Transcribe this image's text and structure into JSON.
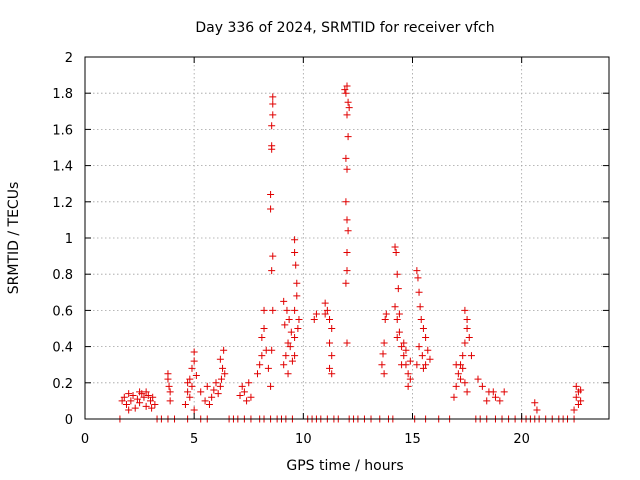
{
  "chart_data": {
    "type": "scatter",
    "title": "Day 336 of 2024, SRMTID for receiver vfch",
    "xlabel": "GPS time / hours",
    "ylabel": "SRMTID / TECUs",
    "xlim": [
      0,
      24
    ],
    "ylim": [
      0,
      2
    ],
    "xticks": [
      0,
      5,
      10,
      15,
      20
    ],
    "yticks": [
      0,
      0.2,
      0.4,
      0.6,
      0.8,
      1,
      1.2,
      1.4,
      1.6,
      1.8,
      2
    ],
    "xtick_labels": [
      "0",
      "5",
      "10",
      "15",
      "20"
    ],
    "ytick_labels": [
      "0",
      "0.2",
      "0.4",
      "0.6",
      "0.8",
      "1",
      "1.2",
      "1.4",
      "1.6",
      "1.8",
      "2"
    ],
    "grid": true,
    "marker": "+",
    "marker_color": "#e00000",
    "series": [
      {
        "name": "SRMTID",
        "points": [
          [
            1.6,
            0
          ],
          [
            3.3,
            0
          ],
          [
            3.5,
            0
          ],
          [
            3.8,
            0
          ],
          [
            4.1,
            0
          ],
          [
            4.7,
            0
          ],
          [
            5.3,
            0
          ],
          [
            5.6,
            0
          ],
          [
            6.6,
            0
          ],
          [
            6.8,
            0
          ],
          [
            7.0,
            0
          ],
          [
            7.3,
            0
          ],
          [
            7.6,
            0
          ],
          [
            8.0,
            0
          ],
          [
            8.2,
            0
          ],
          [
            8.5,
            0
          ],
          [
            8.8,
            0
          ],
          [
            9.0,
            0
          ],
          [
            9.2,
            0
          ],
          [
            9.5,
            0
          ],
          [
            10.2,
            0
          ],
          [
            10.4,
            0
          ],
          [
            10.6,
            0
          ],
          [
            10.8,
            0
          ],
          [
            11.1,
            0
          ],
          [
            11.4,
            0
          ],
          [
            11.6,
            0
          ],
          [
            12.1,
            0
          ],
          [
            12.3,
            0
          ],
          [
            12.5,
            0
          ],
          [
            12.8,
            0
          ],
          [
            13.1,
            0
          ],
          [
            13.5,
            0
          ],
          [
            13.9,
            0
          ],
          [
            14.1,
            0
          ],
          [
            15.1,
            0
          ],
          [
            15.6,
            0
          ],
          [
            16.2,
            0
          ],
          [
            16.7,
            0
          ],
          [
            17.9,
            0
          ],
          [
            18.1,
            0
          ],
          [
            18.4,
            0
          ],
          [
            18.8,
            0
          ],
          [
            19.1,
            0
          ],
          [
            19.4,
            0
          ],
          [
            19.7,
            0
          ],
          [
            20.0,
            0
          ],
          [
            20.2,
            0
          ],
          [
            20.4,
            0
          ],
          [
            20.6,
            0
          ],
          [
            20.8,
            0
          ],
          [
            21.1,
            0
          ],
          [
            21.4,
            0
          ],
          [
            21.7,
            0
          ],
          [
            21.9,
            0
          ],
          [
            22.1,
            0
          ],
          [
            22.4,
            0
          ],
          [
            1.7,
            0.1
          ],
          [
            1.8,
            0.12
          ],
          [
            1.9,
            0.08
          ],
          [
            2.0,
            0.14
          ],
          [
            2.1,
            0.1
          ],
          [
            2.2,
            0.13
          ],
          [
            2.3,
            0.06
          ],
          [
            2.4,
            0.11
          ],
          [
            2.5,
            0.09
          ],
          [
            2.6,
            0.14
          ],
          [
            2.7,
            0.12
          ],
          [
            2.8,
            0.07
          ],
          [
            2.9,
            0.13
          ],
          [
            3.0,
            0.1
          ],
          [
            3.1,
            0.12
          ],
          [
            3.2,
            0.08
          ],
          [
            2.0,
            0.05
          ],
          [
            2.5,
            0.15
          ],
          [
            2.8,
            0.15
          ],
          [
            3.05,
            0.06
          ],
          [
            3.8,
            0.22
          ],
          [
            3.85,
            0.18
          ],
          [
            3.9,
            0.15
          ],
          [
            3.8,
            0.25
          ],
          [
            3.9,
            0.1
          ],
          [
            4.6,
            0.08
          ],
          [
            4.7,
            0.15
          ],
          [
            4.8,
            0.22
          ],
          [
            4.9,
            0.28
          ],
          [
            5.0,
            0.32
          ],
          [
            5.0,
            0.37
          ],
          [
            4.9,
            0.18
          ],
          [
            4.8,
            0.12
          ],
          [
            5.1,
            0.24
          ],
          [
            4.7,
            0.2
          ],
          [
            5.0,
            0.05
          ],
          [
            5.3,
            0.15
          ],
          [
            5.5,
            0.1
          ],
          [
            5.6,
            0.18
          ],
          [
            5.8,
            0.12
          ],
          [
            5.9,
            0.16
          ],
          [
            6.0,
            0.2
          ],
          [
            6.1,
            0.14
          ],
          [
            6.2,
            0.18
          ],
          [
            5.7,
            0.08
          ],
          [
            6.2,
            0.33
          ],
          [
            6.3,
            0.28
          ],
          [
            6.35,
            0.38
          ],
          [
            6.4,
            0.25
          ],
          [
            6.25,
            0.22
          ],
          [
            7.1,
            0.13
          ],
          [
            7.2,
            0.18
          ],
          [
            7.3,
            0.15
          ],
          [
            7.5,
            0.2
          ],
          [
            7.6,
            0.12
          ],
          [
            7.4,
            0.1
          ],
          [
            7.9,
            0.25
          ],
          [
            8.0,
            0.3
          ],
          [
            8.1,
            0.45
          ],
          [
            8.2,
            0.5
          ],
          [
            8.3,
            0.38
          ],
          [
            8.4,
            0.28
          ],
          [
            8.5,
            0.18
          ],
          [
            8.2,
            0.6
          ],
          [
            8.1,
            0.35
          ],
          [
            8.55,
            0.82
          ],
          [
            8.6,
            0.9
          ],
          [
            8.5,
            1.16
          ],
          [
            8.5,
            1.24
          ],
          [
            8.55,
            1.49
          ],
          [
            8.55,
            1.51
          ],
          [
            8.55,
            1.62
          ],
          [
            8.6,
            1.68
          ],
          [
            8.6,
            1.74
          ],
          [
            8.6,
            1.78
          ],
          [
            8.6,
            0.6
          ],
          [
            8.55,
            0.38
          ],
          [
            9.1,
            0.3
          ],
          [
            9.2,
            0.35
          ],
          [
            9.3,
            0.42
          ],
          [
            9.4,
            0.4
          ],
          [
            9.5,
            0.32
          ],
          [
            9.15,
            0.52
          ],
          [
            9.25,
            0.6
          ],
          [
            9.35,
            0.55
          ],
          [
            9.45,
            0.48
          ],
          [
            9.1,
            0.65
          ],
          [
            9.3,
            0.25
          ],
          [
            9.6,
            0.92
          ],
          [
            9.6,
            0.99
          ],
          [
            9.65,
            0.85
          ],
          [
            9.7,
            0.75
          ],
          [
            9.7,
            0.68
          ],
          [
            9.6,
            0.6
          ],
          [
            9.75,
            0.5
          ],
          [
            9.6,
            0.45
          ],
          [
            9.8,
            0.55
          ],
          [
            9.6,
            0.35
          ],
          [
            10.5,
            0.55
          ],
          [
            10.6,
            0.58
          ],
          [
            11.0,
            0.64
          ],
          [
            11.1,
            0.6
          ],
          [
            11.2,
            0.55
          ],
          [
            11.3,
            0.5
          ],
          [
            11.2,
            0.42
          ],
          [
            11.3,
            0.35
          ],
          [
            11.2,
            0.28
          ],
          [
            11.0,
            0.58
          ],
          [
            11.3,
            0.25
          ],
          [
            11.9,
            1.82
          ],
          [
            11.95,
            1.8
          ],
          [
            12.0,
            1.84
          ],
          [
            12.05,
            1.75
          ],
          [
            12.1,
            1.72
          ],
          [
            12.0,
            1.68
          ],
          [
            12.05,
            1.56
          ],
          [
            11.95,
            1.44
          ],
          [
            12.0,
            1.38
          ],
          [
            11.95,
            1.2
          ],
          [
            12.0,
            1.1
          ],
          [
            12.05,
            1.04
          ],
          [
            12.0,
            0.92
          ],
          [
            12.0,
            0.82
          ],
          [
            11.95,
            0.75
          ],
          [
            12.0,
            0.42
          ],
          [
            13.6,
            0.3
          ],
          [
            13.65,
            0.36
          ],
          [
            13.7,
            0.42
          ],
          [
            13.75,
            0.55
          ],
          [
            13.8,
            0.58
          ],
          [
            13.7,
            0.25
          ],
          [
            14.2,
            0.95
          ],
          [
            14.25,
            0.92
          ],
          [
            14.3,
            0.8
          ],
          [
            14.35,
            0.72
          ],
          [
            14.2,
            0.62
          ],
          [
            14.3,
            0.55
          ],
          [
            14.4,
            0.48
          ],
          [
            14.5,
            0.4
          ],
          [
            14.6,
            0.35
          ],
          [
            14.7,
            0.3
          ],
          [
            14.8,
            0.25
          ],
          [
            14.9,
            0.22
          ],
          [
            14.4,
            0.58
          ],
          [
            14.6,
            0.42
          ],
          [
            14.8,
            0.18
          ],
          [
            14.3,
            0.45
          ],
          [
            14.5,
            0.3
          ],
          [
            14.7,
            0.38
          ],
          [
            14.9,
            0.32
          ],
          [
            15.2,
            0.82
          ],
          [
            15.25,
            0.78
          ],
          [
            15.3,
            0.7
          ],
          [
            15.35,
            0.62
          ],
          [
            15.4,
            0.55
          ],
          [
            15.5,
            0.5
          ],
          [
            15.6,
            0.45
          ],
          [
            15.7,
            0.38
          ],
          [
            15.8,
            0.33
          ],
          [
            15.5,
            0.28
          ],
          [
            15.6,
            0.3
          ],
          [
            15.3,
            0.4
          ],
          [
            15.45,
            0.35
          ],
          [
            15.2,
            0.3
          ],
          [
            16.9,
            0.12
          ],
          [
            17.0,
            0.18
          ],
          [
            17.1,
            0.25
          ],
          [
            17.2,
            0.3
          ],
          [
            17.3,
            0.35
          ],
          [
            17.4,
            0.42
          ],
          [
            17.5,
            0.5
          ],
          [
            17.5,
            0.55
          ],
          [
            17.6,
            0.45
          ],
          [
            17.7,
            0.35
          ],
          [
            17.3,
            0.28
          ],
          [
            17.4,
            0.2
          ],
          [
            17.5,
            0.15
          ],
          [
            17.0,
            0.3
          ],
          [
            17.2,
            0.22
          ],
          [
            17.4,
            0.6
          ],
          [
            18.0,
            0.22
          ],
          [
            18.2,
            0.18
          ],
          [
            18.4,
            0.1
          ],
          [
            18.5,
            0.15
          ],
          [
            18.7,
            0.15
          ],
          [
            18.8,
            0.12
          ],
          [
            19.0,
            0.1
          ],
          [
            19.2,
            0.15
          ],
          [
            20.6,
            0.09
          ],
          [
            20.7,
            0.05
          ],
          [
            22.4,
            0.05
          ],
          [
            22.5,
            0.12
          ],
          [
            22.6,
            0.15
          ],
          [
            22.7,
            0.1
          ],
          [
            22.5,
            0.18
          ],
          [
            22.6,
            0.08
          ],
          [
            22.7,
            0.16
          ]
        ]
      }
    ]
  }
}
